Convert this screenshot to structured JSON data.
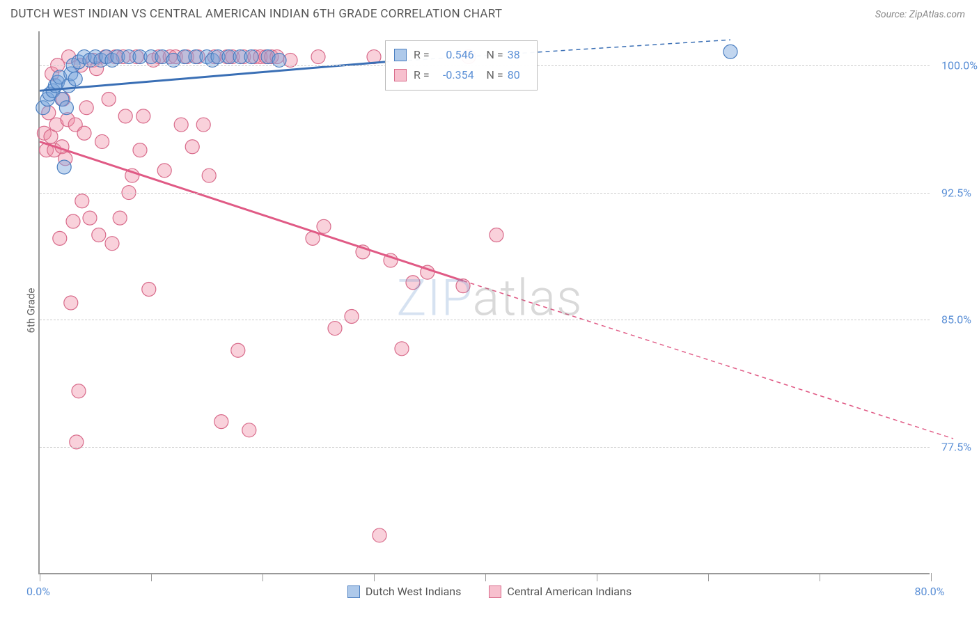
{
  "header": {
    "title": "DUTCH WEST INDIAN VS CENTRAL AMERICAN INDIAN 6TH GRADE CORRELATION CHART",
    "source": "Source: ZipAtlas.com"
  },
  "ylabel": "6th Grade",
  "watermark": {
    "part1": "ZIP",
    "part2": "atlas"
  },
  "chart": {
    "type": "scatter",
    "xlim": [
      0,
      80
    ],
    "ylim": [
      70,
      102
    ],
    "xticks": [
      0,
      10,
      20,
      30,
      40,
      50,
      60,
      70,
      80
    ],
    "xtick_labels": {
      "0": "0.0%",
      "80": "80.0%"
    },
    "yticks": [
      77.5,
      85.0,
      92.5,
      100.0
    ],
    "ytick_labels": [
      "77.5%",
      "85.0%",
      "92.5%",
      "100.0%"
    ],
    "grid_color": "#cccccc",
    "background_color": "#ffffff"
  },
  "series": {
    "blue": {
      "label": "Dutch West Indians",
      "r": "0.546",
      "n": "38",
      "fill": "rgba(120,165,220,0.45)",
      "stroke": "#4a7ec0",
      "line_color": "#3a6fb5",
      "radius": 10,
      "trend": {
        "x1": 0,
        "y1": 98.5,
        "x2": 31,
        "y2": 100.2,
        "dash_x2": 62,
        "dash_y2": 101.5
      },
      "points": [
        [
          0.3,
          97.5
        ],
        [
          0.7,
          98.0
        ],
        [
          0.9,
          98.3
        ],
        [
          1.2,
          98.5
        ],
        [
          1.4,
          98.8
        ],
        [
          1.6,
          99.0
        ],
        [
          1.8,
          99.3
        ],
        [
          2.0,
          98.0
        ],
        [
          2.2,
          94.0
        ],
        [
          2.4,
          97.5
        ],
        [
          2.6,
          98.8
        ],
        [
          2.8,
          99.5
        ],
        [
          3.0,
          100.0
        ],
        [
          3.2,
          99.2
        ],
        [
          3.5,
          100.2
        ],
        [
          4.0,
          100.5
        ],
        [
          4.5,
          100.3
        ],
        [
          5.0,
          100.5
        ],
        [
          5.5,
          100.3
        ],
        [
          6.0,
          100.5
        ],
        [
          6.5,
          100.3
        ],
        [
          7.0,
          100.5
        ],
        [
          8.0,
          100.5
        ],
        [
          9.0,
          100.5
        ],
        [
          10.0,
          100.5
        ],
        [
          11.0,
          100.5
        ],
        [
          12.0,
          100.3
        ],
        [
          13.0,
          100.5
        ],
        [
          14.0,
          100.5
        ],
        [
          15.0,
          100.5
        ],
        [
          15.5,
          100.3
        ],
        [
          16.0,
          100.5
        ],
        [
          17.0,
          100.5
        ],
        [
          18.0,
          100.5
        ],
        [
          19.0,
          100.5
        ],
        [
          20.5,
          100.5
        ],
        [
          21.5,
          100.3
        ],
        [
          62.0,
          100.8
        ]
      ]
    },
    "pink": {
      "label": "Central American Indians",
      "r": "-0.354",
      "n": "80",
      "fill": "rgba(240,140,165,0.4)",
      "stroke": "#d86a8a",
      "line_color": "#e05a85",
      "radius": 10,
      "trend": {
        "x1": 0,
        "y1": 95.5,
        "x2": 38,
        "y2": 87.3,
        "dash_x2": 82,
        "dash_y2": 78.0
      },
      "points": [
        [
          0.4,
          96.0
        ],
        [
          0.6,
          95.0
        ],
        [
          0.8,
          97.2
        ],
        [
          1.0,
          95.8
        ],
        [
          1.1,
          99.5
        ],
        [
          1.3,
          95.0
        ],
        [
          1.5,
          96.5
        ],
        [
          1.6,
          100.0
        ],
        [
          1.8,
          89.8
        ],
        [
          2.0,
          95.2
        ],
        [
          2.1,
          98.0
        ],
        [
          2.3,
          94.5
        ],
        [
          2.5,
          96.8
        ],
        [
          2.6,
          100.5
        ],
        [
          2.8,
          86.0
        ],
        [
          3.0,
          90.8
        ],
        [
          3.2,
          96.5
        ],
        [
          3.3,
          77.8
        ],
        [
          3.5,
          80.8
        ],
        [
          3.7,
          100.0
        ],
        [
          3.8,
          92.0
        ],
        [
          4.0,
          96.0
        ],
        [
          4.2,
          97.5
        ],
        [
          4.5,
          91.0
        ],
        [
          4.8,
          100.3
        ],
        [
          5.1,
          99.8
        ],
        [
          5.3,
          90.0
        ],
        [
          5.6,
          95.5
        ],
        [
          5.9,
          100.5
        ],
        [
          6.2,
          98.0
        ],
        [
          6.5,
          89.5
        ],
        [
          6.8,
          100.5
        ],
        [
          7.2,
          91.0
        ],
        [
          7.5,
          100.5
        ],
        [
          7.7,
          97.0
        ],
        [
          8.0,
          92.5
        ],
        [
          8.3,
          93.5
        ],
        [
          8.7,
          100.5
        ],
        [
          9.0,
          95.0
        ],
        [
          9.3,
          97.0
        ],
        [
          9.8,
          86.8
        ],
        [
          10.2,
          100.3
        ],
        [
          10.7,
          100.5
        ],
        [
          11.2,
          93.8
        ],
        [
          11.7,
          100.5
        ],
        [
          12.2,
          100.5
        ],
        [
          12.7,
          96.5
        ],
        [
          13.2,
          100.5
        ],
        [
          13.7,
          95.2
        ],
        [
          14.2,
          100.5
        ],
        [
          14.7,
          96.5
        ],
        [
          15.2,
          93.5
        ],
        [
          15.7,
          100.5
        ],
        [
          16.3,
          79.0
        ],
        [
          16.8,
          100.5
        ],
        [
          17.3,
          100.5
        ],
        [
          17.8,
          83.2
        ],
        [
          18.3,
          100.5
        ],
        [
          18.8,
          78.5
        ],
        [
          19.3,
          100.5
        ],
        [
          19.8,
          100.5
        ],
        [
          20.3,
          100.5
        ],
        [
          20.8,
          100.5
        ],
        [
          21.3,
          100.5
        ],
        [
          22.5,
          100.3
        ],
        [
          24.5,
          89.8
        ],
        [
          25.0,
          100.5
        ],
        [
          25.5,
          90.5
        ],
        [
          26.5,
          84.5
        ],
        [
          28.0,
          85.2
        ],
        [
          29.0,
          89.0
        ],
        [
          30.0,
          100.5
        ],
        [
          30.5,
          72.3
        ],
        [
          31.5,
          88.5
        ],
        [
          32.5,
          83.3
        ],
        [
          33.5,
          87.2
        ],
        [
          34.8,
          87.8
        ],
        [
          38.0,
          87.0
        ],
        [
          38.5,
          100.5
        ],
        [
          41.0,
          90.0
        ]
      ]
    }
  },
  "legend_swatches": {
    "blue": {
      "fill": "rgba(120,165,220,0.6)",
      "border": "#4a7ec0"
    },
    "pink": {
      "fill": "rgba(240,140,165,0.55)",
      "border": "#d86a8a"
    }
  }
}
